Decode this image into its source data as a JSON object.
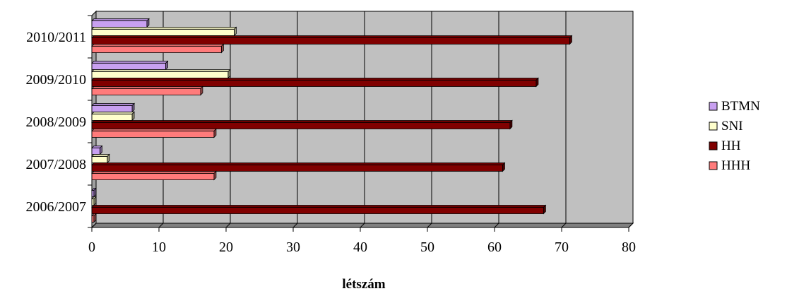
{
  "chart_data": {
    "type": "bar",
    "orientation": "horizontal",
    "categories": [
      "2006/2007",
      "2007/2008",
      "2008/2009",
      "2009/2010",
      "2010/2011"
    ],
    "series": [
      {
        "name": "BTMN",
        "values": [
          0.3,
          1.2,
          6,
          11,
          8.2
        ],
        "color": "#C8A0F0"
      },
      {
        "name": "SNI",
        "values": [
          0.3,
          2.3,
          6,
          20.3,
          21.2
        ],
        "color": "#FFFFCC"
      },
      {
        "name": "HH",
        "values": [
          67.3,
          61.2,
          62.3,
          66.2,
          71.2
        ],
        "color": "#800000"
      },
      {
        "name": "HHH",
        "values": [
          0.3,
          18.2,
          18.2,
          16.2,
          19.3
        ],
        "color": "#FF7B7B"
      }
    ],
    "xlabel": "létszám",
    "ylabel": "",
    "xlim": [
      0,
      80
    ],
    "xticks": [
      0,
      10,
      20,
      30,
      40,
      50,
      60,
      70,
      80
    ],
    "grid": true,
    "legend_position": "right",
    "background": "#C0C0C0"
  }
}
